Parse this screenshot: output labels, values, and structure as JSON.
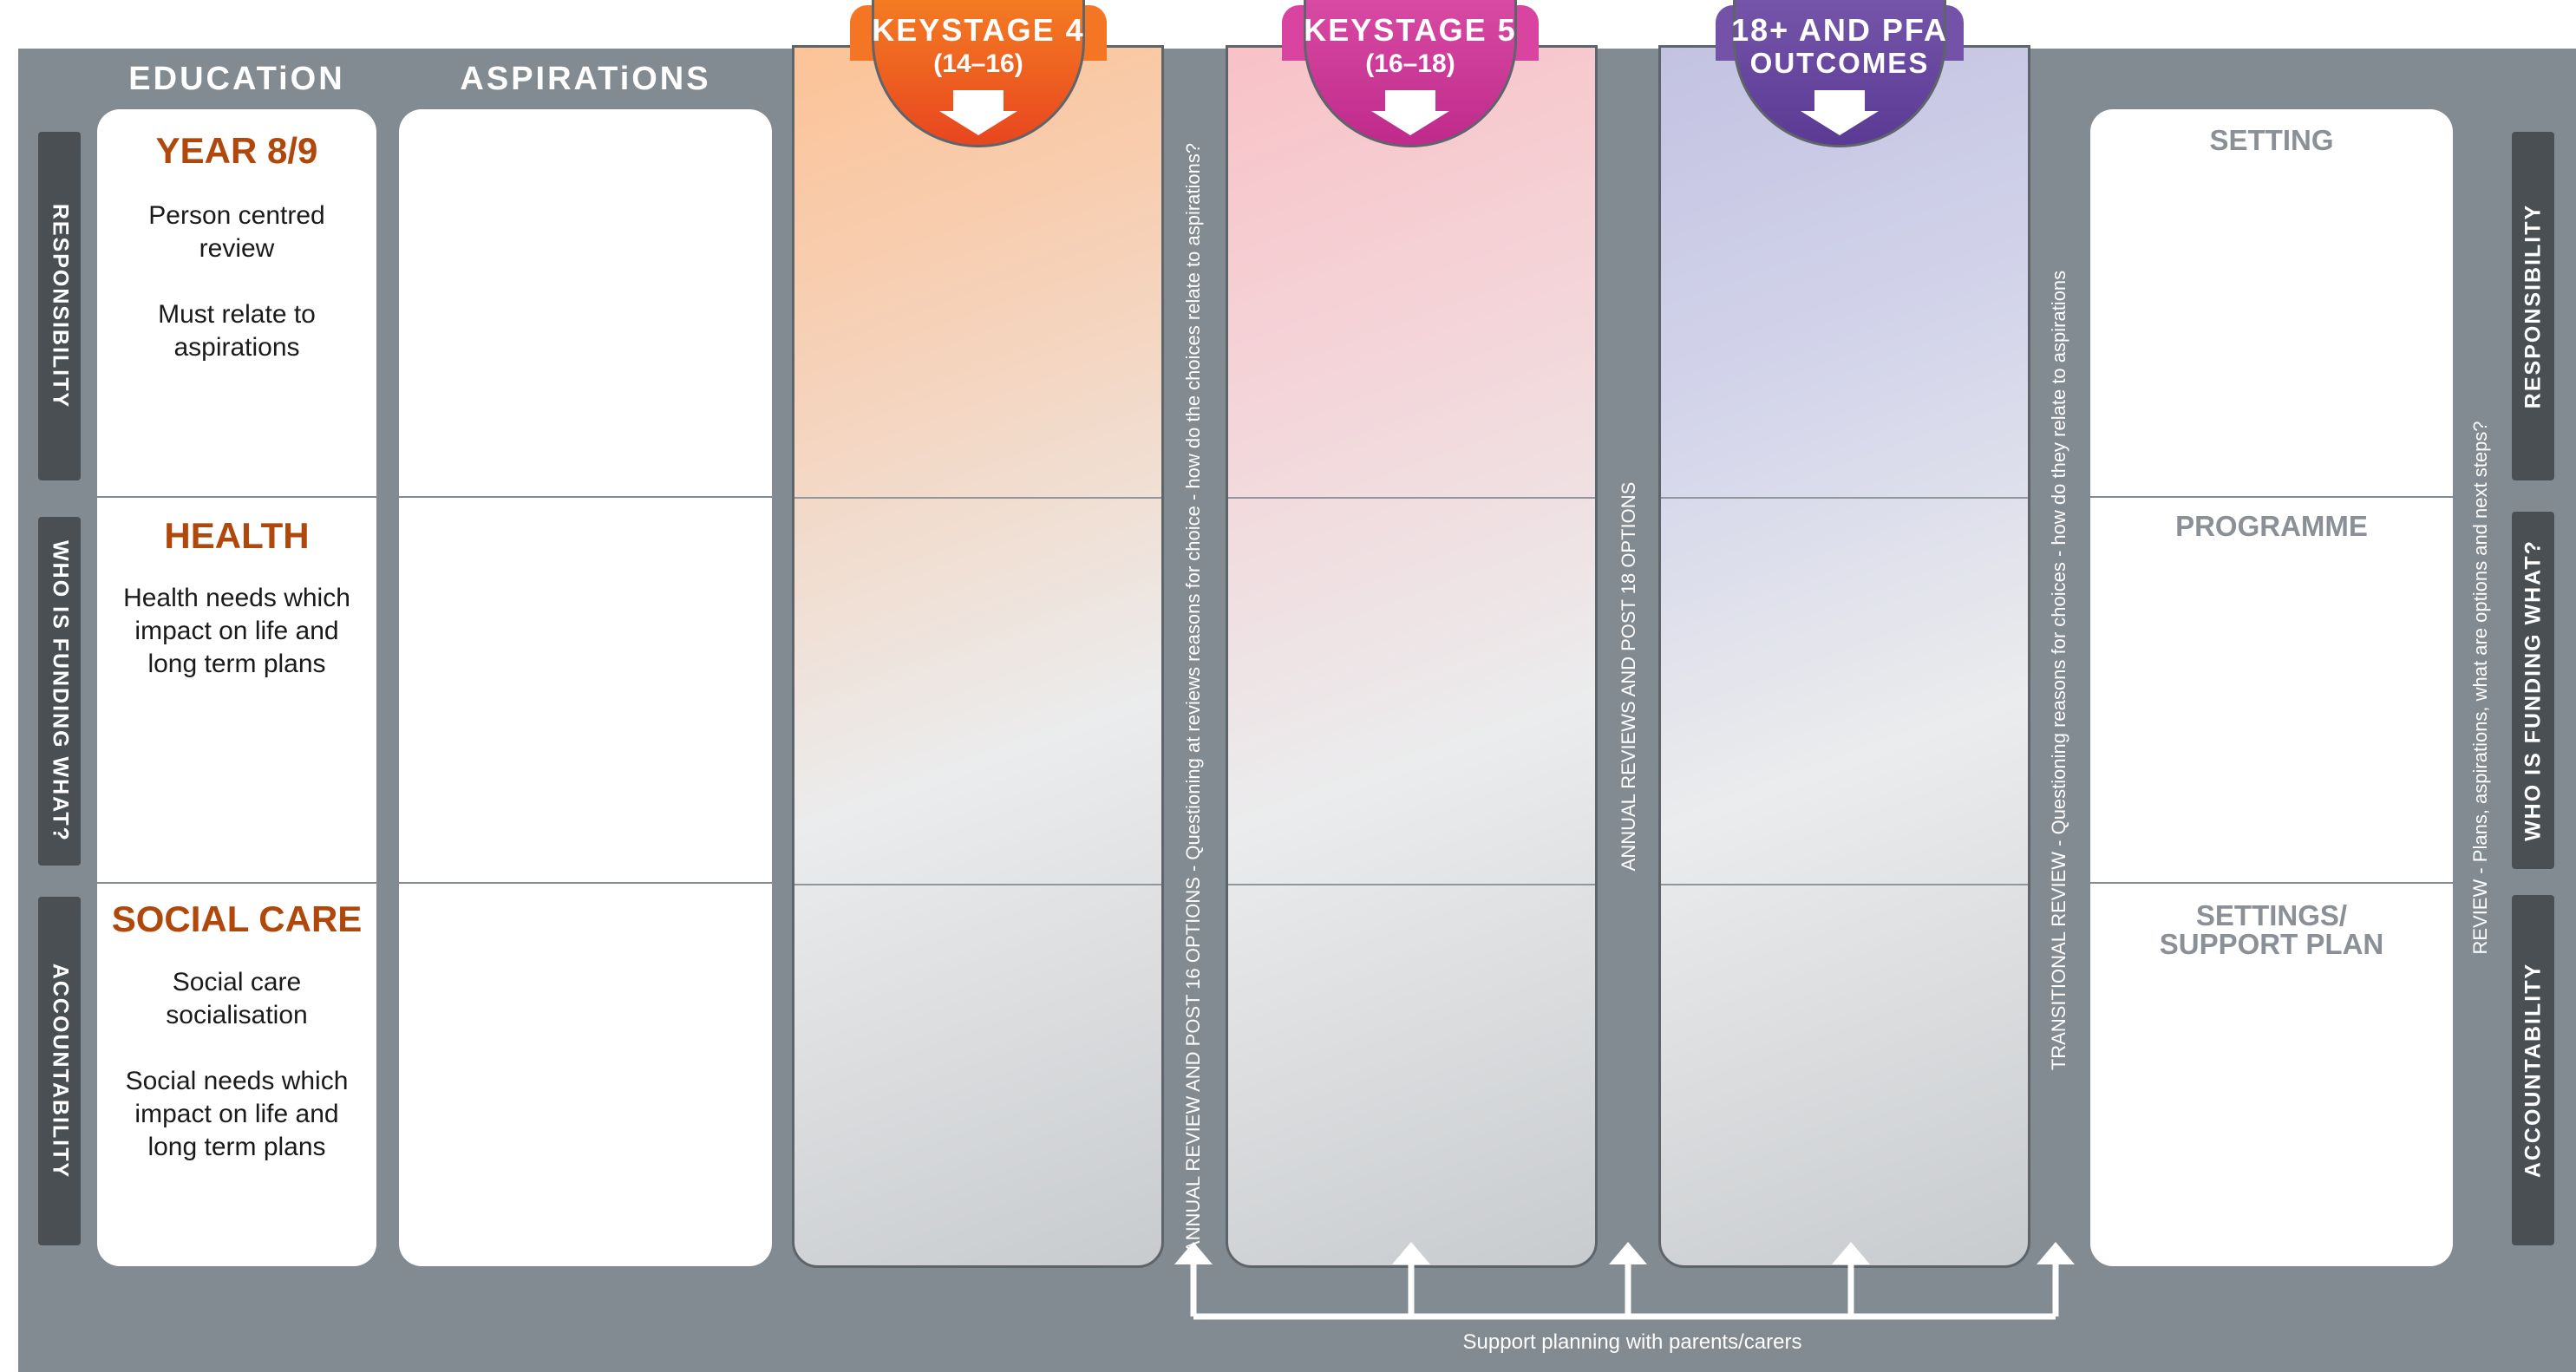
{
  "columns": {
    "education": "EDUCATiON",
    "aspirations": "ASPIRATiONS"
  },
  "keystages": [
    {
      "line1": "KEYSTAGE 4",
      "line2": "(14–16)",
      "color": "#f26a22"
    },
    {
      "line1": "KEYSTAGE 5",
      "line2": "(16–18)",
      "color": "#d33a9c"
    },
    {
      "line1": "18+ AND PFA",
      "line2": "OUTCOMES",
      "color": "#6b4ea3"
    }
  ],
  "left_labels": [
    "RESPONSIBILITY",
    "WHO IS FUNDING WHAT?",
    "ACCOUNTABILITY"
  ],
  "right_labels": [
    "RESPONSIBILITY",
    "WHO IS FUNDING WHAT?",
    "ACCOUNTABILITY"
  ],
  "rows": [
    {
      "title": "YEAR 8/9",
      "text": "Person centred\nreview\n\nMust relate to\naspirations"
    },
    {
      "title": "HEALTH",
      "text": "Health needs which\nimpact on life and\nlong term plans"
    },
    {
      "title": "SOCIAL CARE",
      "text": "Social care\nsocialisation\n\nSocial needs which\nimpact on life and\nlong term plans"
    }
  ],
  "outcomes": [
    "SETTING",
    "PROGRAMME",
    "SETTINGS/\nSUPPORT PLAN"
  ],
  "vertical_notes": {
    "annual_review_16": "ANNUAL REVIEW AND POST 16 OPTIONS - Questioning at reviews reasons for choice - how do the choices relate to aspirations?",
    "annual_reviews_18": "ANNUAL REVIEWS AND POST 18 OPTIONS",
    "transitional_review": "TRANSITIONAL REVIEW - Questioning reasons for choices - how do they relate to aspirations",
    "review_plans": "REVIEW - Plans, aspirations, what are options and next steps?"
  },
  "bottom_note": "Support planning with parents/carers"
}
